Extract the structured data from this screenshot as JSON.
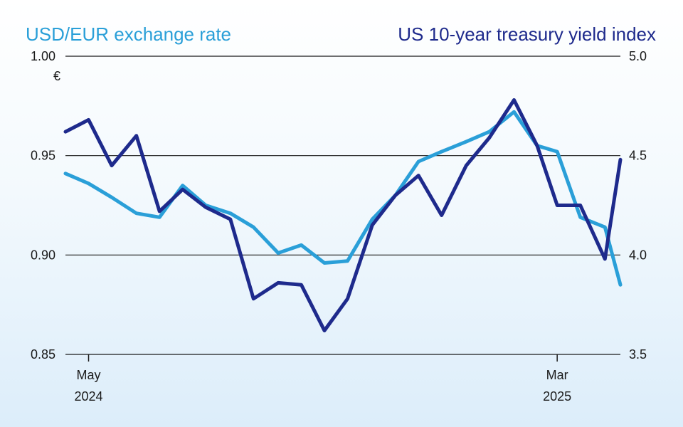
{
  "chart_data": {
    "type": "line",
    "title_left": "USD/EUR exchange rate",
    "title_right": "US 10-year treasury yield index",
    "left_unit": "€",
    "left_axis": {
      "min": 0.85,
      "max": 1.0,
      "ticks": [
        "1.00",
        "0.95",
        "0.90",
        "0.85"
      ]
    },
    "right_axis": {
      "min": 3.5,
      "max": 5.0,
      "ticks": [
        "5.0",
        "4.5",
        "4.0",
        "3.5"
      ]
    },
    "x_ticks": [
      {
        "label": "May",
        "year": "2024",
        "date": "2024-05-01"
      },
      {
        "label": "Mar",
        "year": "2025",
        "date": "2025-03-01"
      }
    ],
    "x_range": [
      "2024-04-16",
      "2025-04-11"
    ],
    "grid": "horizontal",
    "series": [
      {
        "name": "USD/EUR exchange rate",
        "axis": "left",
        "color": "#2a9fd8",
        "x": [
          "2024-04-16",
          "2024-05-01",
          "2024-05-16",
          "2024-06-01",
          "2024-06-16",
          "2024-07-01",
          "2024-07-16",
          "2024-08-01",
          "2024-08-16",
          "2024-09-01",
          "2024-09-16",
          "2024-10-01",
          "2024-10-16",
          "2024-11-01",
          "2024-11-16",
          "2024-12-01",
          "2024-12-16",
          "2025-01-01",
          "2025-01-16",
          "2025-02-01",
          "2025-02-16",
          "2025-03-01",
          "2025-03-16",
          "2025-04-01",
          "2025-04-11"
        ],
        "values": [
          0.941,
          0.936,
          0.929,
          0.921,
          0.919,
          0.935,
          0.925,
          0.921,
          0.914,
          0.901,
          0.905,
          0.896,
          0.897,
          0.918,
          0.93,
          0.947,
          0.952,
          0.957,
          0.962,
          0.972,
          0.955,
          0.952,
          0.919,
          0.914,
          0.885
        ]
      },
      {
        "name": "US 10-year treasury yield index",
        "axis": "right",
        "color": "#1e2a8c",
        "x": [
          "2024-04-16",
          "2024-05-01",
          "2024-05-16",
          "2024-06-01",
          "2024-06-16",
          "2024-07-01",
          "2024-07-16",
          "2024-08-01",
          "2024-08-16",
          "2024-09-01",
          "2024-09-16",
          "2024-10-01",
          "2024-10-16",
          "2024-11-01",
          "2024-11-16",
          "2024-12-01",
          "2024-12-16",
          "2025-01-01",
          "2025-01-16",
          "2025-02-01",
          "2025-02-16",
          "2025-03-01",
          "2025-03-16",
          "2025-04-01",
          "2025-04-11"
        ],
        "values": [
          4.62,
          4.68,
          4.45,
          4.6,
          4.22,
          4.33,
          4.24,
          4.18,
          3.78,
          3.86,
          3.85,
          3.62,
          3.78,
          4.15,
          4.3,
          4.4,
          4.2,
          4.45,
          4.59,
          4.78,
          4.55,
          4.25,
          4.25,
          3.98,
          4.48
        ]
      }
    ]
  }
}
